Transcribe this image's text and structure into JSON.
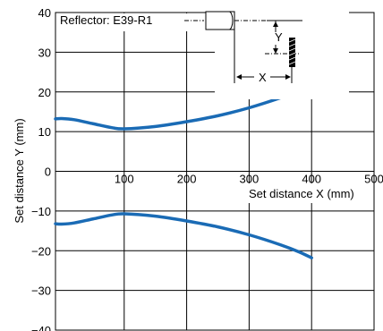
{
  "chart_data": {
    "type": "line",
    "xlabel": "Set distance X (mm)",
    "ylabel": "Set distance Y (mm)",
    "annotation": "Reflector: E39-R1",
    "diagram_labels": {
      "y": "Y",
      "x": "X"
    },
    "xlim": [
      -10,
      500
    ],
    "ylim": [
      -40,
      40
    ],
    "x_ticks": [
      100,
      200,
      300,
      400,
      500
    ],
    "y_ticks": [
      40,
      30,
      20,
      10,
      0,
      -10,
      -20,
      -30,
      -40
    ],
    "y_tick_labels": [
      "40",
      "30",
      "20",
      "10",
      "0",
      "−10",
      "−20",
      "−30",
      "−40"
    ],
    "grid": true,
    "color": "#1a6bb5",
    "series": [
      {
        "x": [
          -10,
          0,
          20,
          50,
          80,
          100,
          150,
          200,
          250,
          300,
          350,
          380,
          400
        ],
        "y": [
          13.2,
          13.3,
          13,
          12,
          11,
          10.7,
          11.3,
          12.5,
          14,
          16,
          18.5,
          20.3,
          21.8
        ]
      },
      {
        "x": [
          -10,
          0,
          20,
          50,
          80,
          100,
          150,
          200,
          250,
          300,
          350,
          380,
          400
        ],
        "y": [
          -13.2,
          -13.3,
          -13,
          -12,
          -11,
          -10.7,
          -11.3,
          -12.5,
          -14,
          -16,
          -18.5,
          -20.3,
          -21.8
        ]
      }
    ]
  }
}
